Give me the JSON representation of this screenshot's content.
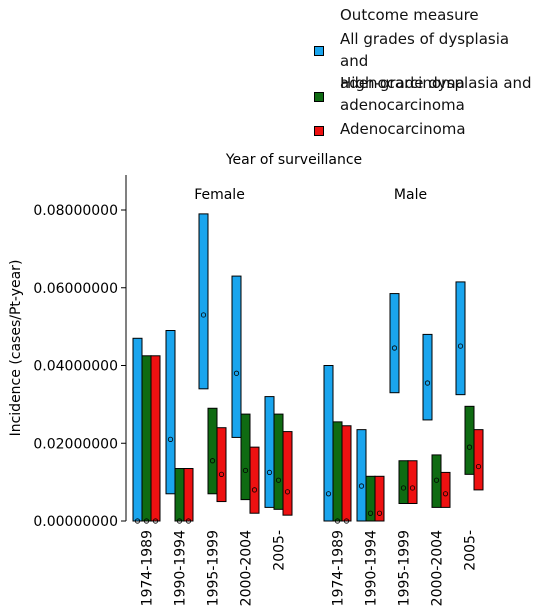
{
  "legend": {
    "title": "Outcome measure",
    "items": [
      {
        "label_line1": "All grades of dysplasia and",
        "label_line2": "adenocarcinoma",
        "color": "#1aa5ee"
      },
      {
        "label_line1": "High-grade dysplasia and",
        "label_line2": "adenocarcinoma",
        "color": "#0f6b12"
      },
      {
        "label_line1": "Adenocarcinoma",
        "label_line2": "",
        "color": "#ee1111"
      }
    ]
  },
  "chart_data": {
    "type": "bar",
    "title": "Year of surveillance",
    "ylabel": "Incidence (cases/Pt-year)",
    "xlabel": "",
    "ylim": [
      0,
      0.09
    ],
    "yticks": [
      "0.00000000",
      "0.02000000",
      "0.04000000",
      "0.06000000",
      "0.08000000"
    ],
    "ytick_values": [
      0,
      0.02,
      0.04,
      0.06,
      0.08
    ],
    "categories": [
      "1974-1989",
      "1990-1994",
      "1995-1999",
      "2000-2004",
      "2005-"
    ],
    "panels": [
      {
        "name": "Female",
        "series": [
          {
            "name": "All grades of dysplasia and adenocarcinoma",
            "color": "#1aa5ee",
            "low": [
              0.0,
              0.007,
              0.034,
              0.0215,
              0.0035
            ],
            "high": [
              0.047,
              0.049,
              0.079,
              0.063,
              0.032
            ],
            "point": [
              0.0,
              0.021,
              0.053,
              0.038,
              0.0125
            ]
          },
          {
            "name": "High-grade dysplasia and adenocarcinoma",
            "color": "#0f6b12",
            "low": [
              0.0,
              0.0,
              0.007,
              0.0055,
              0.003
            ],
            "high": [
              0.0425,
              0.0135,
              0.029,
              0.0275,
              0.0275
            ],
            "point": [
              0.0,
              0.0,
              0.0155,
              0.013,
              0.0105
            ]
          },
          {
            "name": "Adenocarcinoma",
            "color": "#ee1111",
            "low": [
              0.0,
              0.0,
              0.005,
              0.002,
              0.0015
            ],
            "high": [
              0.0425,
              0.0135,
              0.024,
              0.019,
              0.023
            ],
            "point": [
              0.0,
              0.0,
              0.012,
              0.008,
              0.0075
            ]
          }
        ]
      },
      {
        "name": "Male",
        "series": [
          {
            "name": "All grades of dysplasia and adenocarcinoma",
            "color": "#1aa5ee",
            "low": [
              0.0,
              0.0,
              0.033,
              0.026,
              0.0325
            ],
            "high": [
              0.04,
              0.0235,
              0.0585,
              0.048,
              0.0615
            ],
            "point": [
              0.007,
              0.009,
              0.0445,
              0.0355,
              0.045
            ]
          },
          {
            "name": "High-grade dysplasia and adenocarcinoma",
            "color": "#0f6b12",
            "low": [
              0.0,
              0.0,
              0.0045,
              0.0035,
              0.012
            ],
            "high": [
              0.0255,
              0.0115,
              0.0155,
              0.017,
              0.0295
            ],
            "point": [
              0.0,
              0.002,
              0.0085,
              0.0105,
              0.019
            ]
          },
          {
            "name": "Adenocarcinoma",
            "color": "#ee1111",
            "low": [
              0.0,
              0.0,
              0.0045,
              0.0035,
              0.008
            ],
            "high": [
              0.0245,
              0.0115,
              0.0155,
              0.0125,
              0.0235
            ],
            "point": [
              0.0,
              0.002,
              0.0085,
              0.007,
              0.014
            ]
          }
        ]
      }
    ]
  }
}
